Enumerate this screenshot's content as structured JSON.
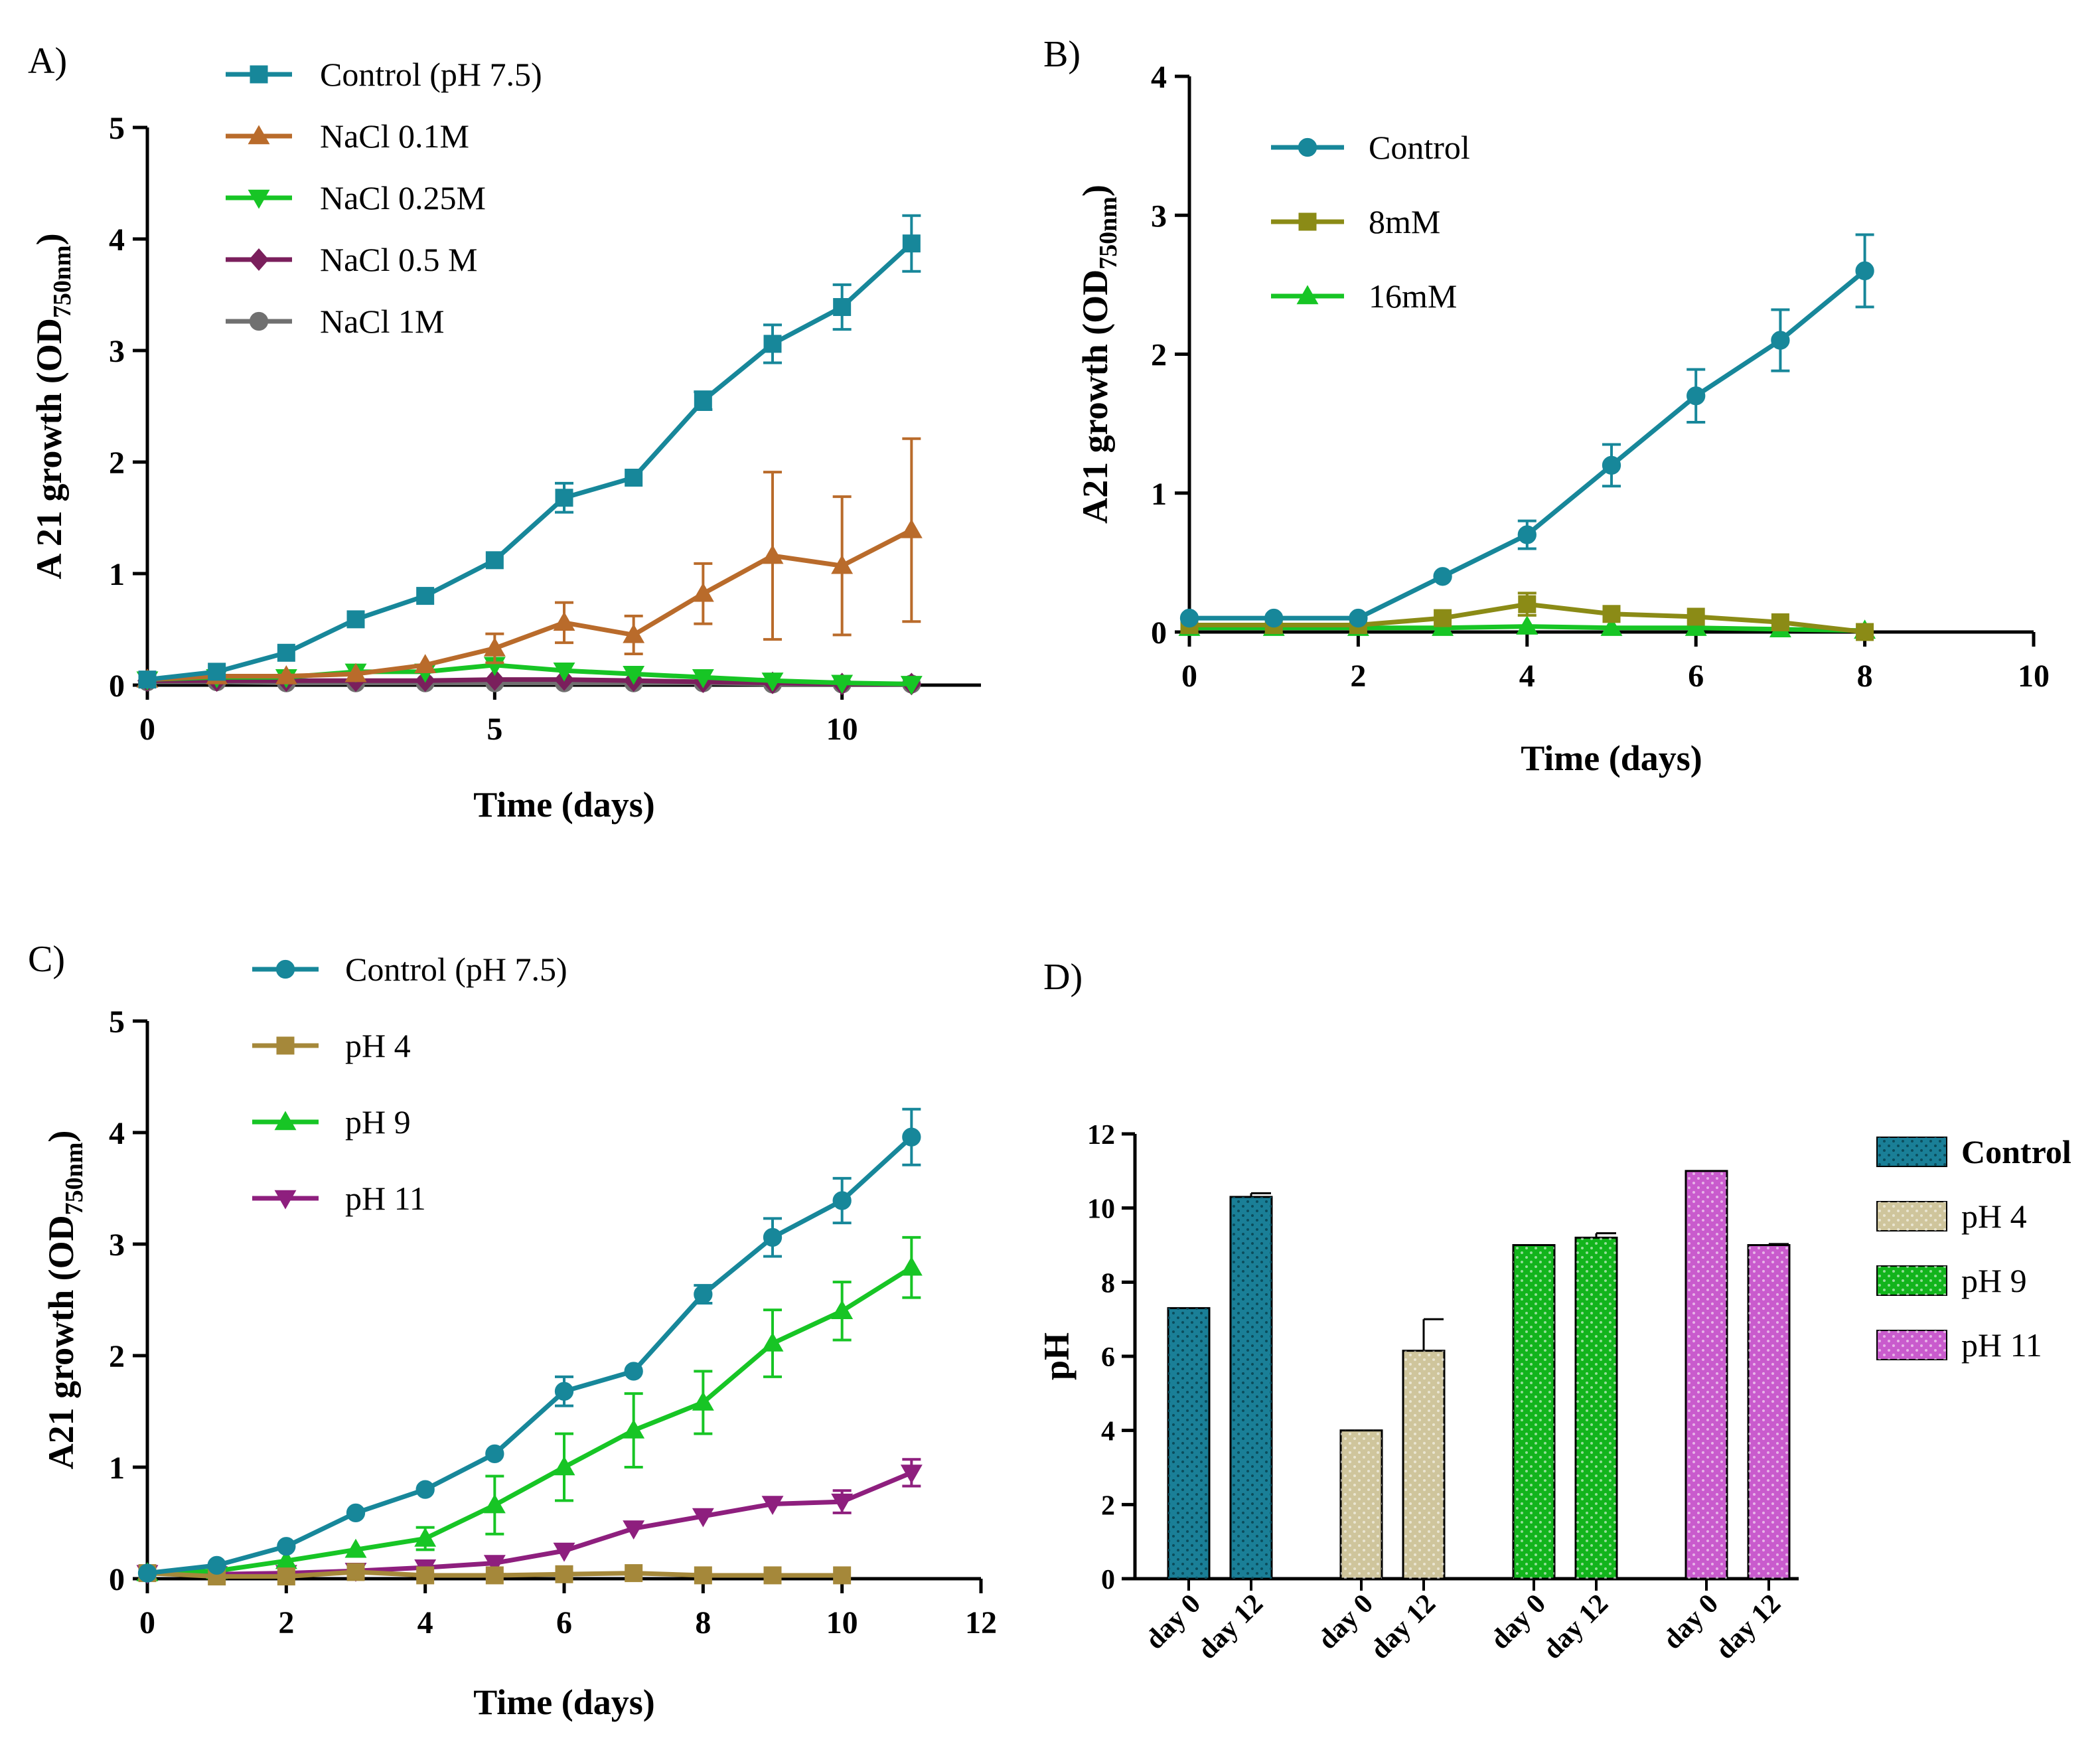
{
  "chart_data": [
    {
      "panel": "A)",
      "type": "line",
      "xlabel": "Time (days)",
      "ylabel_main": "A 21 growth (OD",
      "ylabel_sub": "750nm",
      "ylabel_close": ")",
      "xlim": [
        0,
        12
      ],
      "ylim": [
        0,
        5
      ],
      "xticks": [
        0,
        5,
        10
      ],
      "yticks": [
        0,
        1,
        2,
        3,
        4,
        5
      ],
      "series": [
        {
          "name": "Control (pH 7.5)",
          "color": "#17879a",
          "marker": "square",
          "x": [
            0,
            1,
            2,
            3,
            4,
            5,
            6,
            7,
            8,
            9,
            10,
            11
          ],
          "y": [
            0.05,
            0.12,
            0.29,
            0.59,
            0.8,
            1.12,
            1.68,
            1.86,
            2.55,
            3.06,
            3.39,
            3.96
          ],
          "err": [
            0.02,
            0.03,
            0.03,
            0.04,
            0.04,
            0.05,
            0.13,
            0.05,
            0.08,
            0.17,
            0.2,
            0.25
          ]
        },
        {
          "name": "NaCl 0.1M",
          "color": "#b96b2b",
          "marker": "triangle-up",
          "x": [
            0,
            1,
            2,
            3,
            4,
            5,
            6,
            7,
            8,
            9,
            10,
            11
          ],
          "y": [
            0.05,
            0.08,
            0.08,
            0.1,
            0.18,
            0.33,
            0.56,
            0.45,
            0.82,
            1.16,
            1.07,
            1.39
          ],
          "err": [
            0.02,
            0.02,
            0.03,
            0.03,
            0.05,
            0.13,
            0.18,
            0.17,
            0.27,
            0.75,
            0.62,
            0.82
          ]
        },
        {
          "name": "NaCl 0.25M",
          "color": "#17c525",
          "marker": "triangle-down",
          "x": [
            0,
            1,
            2,
            3,
            4,
            5,
            6,
            7,
            8,
            9,
            10,
            11
          ],
          "y": [
            0.05,
            0.07,
            0.07,
            0.12,
            0.12,
            0.18,
            0.13,
            0.1,
            0.07,
            0.04,
            0.02,
            0.01
          ],
          "err": [
            0,
            0,
            0,
            0,
            0,
            0,
            0,
            0,
            0,
            0,
            0,
            0
          ]
        },
        {
          "name": "NaCl 0.5 M",
          "color": "#7a1f5c",
          "marker": "diamond",
          "x": [
            0,
            1,
            2,
            3,
            4,
            5,
            6,
            7,
            8,
            9,
            10,
            11
          ],
          "y": [
            0.04,
            0.04,
            0.04,
            0.04,
            0.04,
            0.05,
            0.05,
            0.04,
            0.03,
            0.02,
            0.01,
            0.01
          ],
          "err": [
            0,
            0,
            0,
            0,
            0,
            0,
            0,
            0,
            0,
            0,
            0,
            0
          ]
        },
        {
          "name": "NaCl 1M",
          "color": "#707070",
          "marker": "circle",
          "x": [
            0,
            1,
            2,
            3,
            4,
            5,
            6,
            7,
            8,
            9,
            10,
            11
          ],
          "y": [
            0.03,
            0.03,
            0.02,
            0.02,
            0.02,
            0.02,
            0.02,
            0.02,
            0.02,
            0.01,
            0.01,
            0.01
          ],
          "err": [
            0,
            0,
            0,
            0,
            0,
            0,
            0,
            0,
            0,
            0,
            0,
            0
          ]
        }
      ]
    },
    {
      "panel": "B)",
      "type": "line",
      "xlabel": "Time (days)",
      "ylabel_main": "A21 growth (OD",
      "ylabel_sub": "750nm",
      "ylabel_close": ")",
      "xlim": [
        0,
        10
      ],
      "ylim": [
        0,
        4
      ],
      "xticks": [
        0,
        2,
        4,
        6,
        8,
        10
      ],
      "yticks": [
        0,
        1,
        2,
        3,
        4
      ],
      "series": [
        {
          "name": "Control",
          "color": "#17879a",
          "marker": "circle",
          "x": [
            0,
            1,
            2,
            3,
            4,
            5,
            6,
            7,
            8
          ],
          "y": [
            0.1,
            0.1,
            0.1,
            0.4,
            0.7,
            1.2,
            1.7,
            2.1,
            2.6
          ],
          "err": [
            0.02,
            0.02,
            0.02,
            0.03,
            0.1,
            0.15,
            0.19,
            0.22,
            0.26
          ]
        },
        {
          "name": "8mM",
          "color": "#8b8b16",
          "marker": "square",
          "x": [
            0,
            1,
            2,
            3,
            4,
            5,
            6,
            7,
            8
          ],
          "y": [
            0.05,
            0.05,
            0.05,
            0.1,
            0.2,
            0.13,
            0.11,
            0.07,
            0.0
          ],
          "err": [
            0,
            0,
            0,
            0.02,
            0.08,
            0.03,
            0.02,
            0.02,
            0
          ]
        },
        {
          "name": "16mM",
          "color": "#17c525",
          "marker": "triangle-up",
          "x": [
            0,
            1,
            2,
            3,
            4,
            5,
            6,
            7,
            8
          ],
          "y": [
            0.03,
            0.03,
            0.03,
            0.03,
            0.04,
            0.03,
            0.03,
            0.02,
            0.01
          ],
          "err": [
            0,
            0,
            0,
            0,
            0,
            0,
            0,
            0,
            0
          ]
        }
      ]
    },
    {
      "panel": "C)",
      "type": "line",
      "xlabel": "Time (days)",
      "ylabel_main": "A21 growth (OD",
      "ylabel_sub": "750nm",
      "ylabel_close": ")",
      "xlim": [
        0,
        12
      ],
      "ylim": [
        0,
        5
      ],
      "xticks": [
        0,
        2,
        4,
        6,
        8,
        10,
        12
      ],
      "xtick_labels": [
        "0",
        "2",
        "4",
        "6",
        "8",
        "10",
        "12"
      ],
      "yticks": [
        0,
        1,
        2,
        3,
        4,
        5
      ],
      "series": [
        {
          "name": "Control (pH 7.5)",
          "color": "#17879a",
          "marker": "circle",
          "x": [
            0,
            1,
            2,
            3,
            4,
            5,
            6,
            7,
            8,
            9,
            10,
            11
          ],
          "y": [
            0.05,
            0.12,
            0.29,
            0.59,
            0.8,
            1.12,
            1.68,
            1.86,
            2.55,
            3.06,
            3.39,
            3.96
          ],
          "err": [
            0.02,
            0.03,
            0.03,
            0.04,
            0.04,
            0.05,
            0.13,
            0.05,
            0.08,
            0.17,
            0.2,
            0.25
          ]
        },
        {
          "name": "pH 4",
          "color": "#a5883a",
          "marker": "square",
          "x": [
            0,
            1,
            2,
            3,
            4,
            5,
            6,
            7,
            8,
            9,
            10
          ],
          "y": [
            0.05,
            0.02,
            0.02,
            0.06,
            0.03,
            0.03,
            0.04,
            0.05,
            0.03,
            0.03,
            0.03
          ],
          "err": [
            0,
            0,
            0,
            0,
            0,
            0,
            0,
            0,
            0,
            0,
            0
          ]
        },
        {
          "name": "pH 9",
          "color": "#17c525",
          "marker": "triangle-up",
          "x": [
            0,
            1,
            2,
            3,
            4,
            5,
            6,
            7,
            8,
            9,
            10,
            11
          ],
          "y": [
            0.05,
            0.07,
            0.16,
            0.26,
            0.36,
            0.66,
            1.0,
            1.33,
            1.58,
            2.11,
            2.4,
            2.79
          ],
          "err": [
            0.01,
            0.02,
            0.03,
            0.04,
            0.1,
            0.26,
            0.3,
            0.33,
            0.28,
            0.3,
            0.26,
            0.27
          ]
        },
        {
          "name": "pH 11",
          "color": "#8e1f7e",
          "marker": "triangle-down",
          "x": [
            0,
            1,
            2,
            3,
            4,
            5,
            6,
            7,
            8,
            9,
            10,
            11
          ],
          "y": [
            0.05,
            0.04,
            0.05,
            0.07,
            0.1,
            0.14,
            0.25,
            0.45,
            0.56,
            0.67,
            0.69,
            0.95
          ],
          "err": [
            0,
            0,
            0,
            0,
            0.02,
            0.03,
            0.03,
            0.04,
            0.04,
            0.05,
            0.1,
            0.12
          ]
        }
      ]
    },
    {
      "panel": "D)",
      "type": "bar",
      "ylabel": "pH",
      "ylim": [
        0,
        12
      ],
      "yticks": [
        0,
        2,
        4,
        6,
        8,
        10,
        12
      ],
      "categories": [
        "day 0",
        "day 12"
      ],
      "groups": [
        {
          "name": "Control",
          "color": "#1a7f97",
          "hatch": "dots-dark",
          "values": [
            7.3,
            10.3
          ],
          "err": [
            0,
            0.1
          ]
        },
        {
          "name": "pH 4",
          "color": "#cfc59c",
          "hatch": "dots-light",
          "values": [
            4.0,
            6.15
          ],
          "err": [
            0,
            0.85
          ]
        },
        {
          "name": "pH 9",
          "color": "#12b41c",
          "hatch": "dots-light",
          "values": [
            9.0,
            9.2
          ],
          "err": [
            0,
            0.12
          ]
        },
        {
          "name": "pH 11",
          "color": "#c95bcd",
          "hatch": "dots-light",
          "values": [
            11.0,
            9.0
          ],
          "err": [
            0,
            0.03
          ]
        }
      ]
    }
  ]
}
